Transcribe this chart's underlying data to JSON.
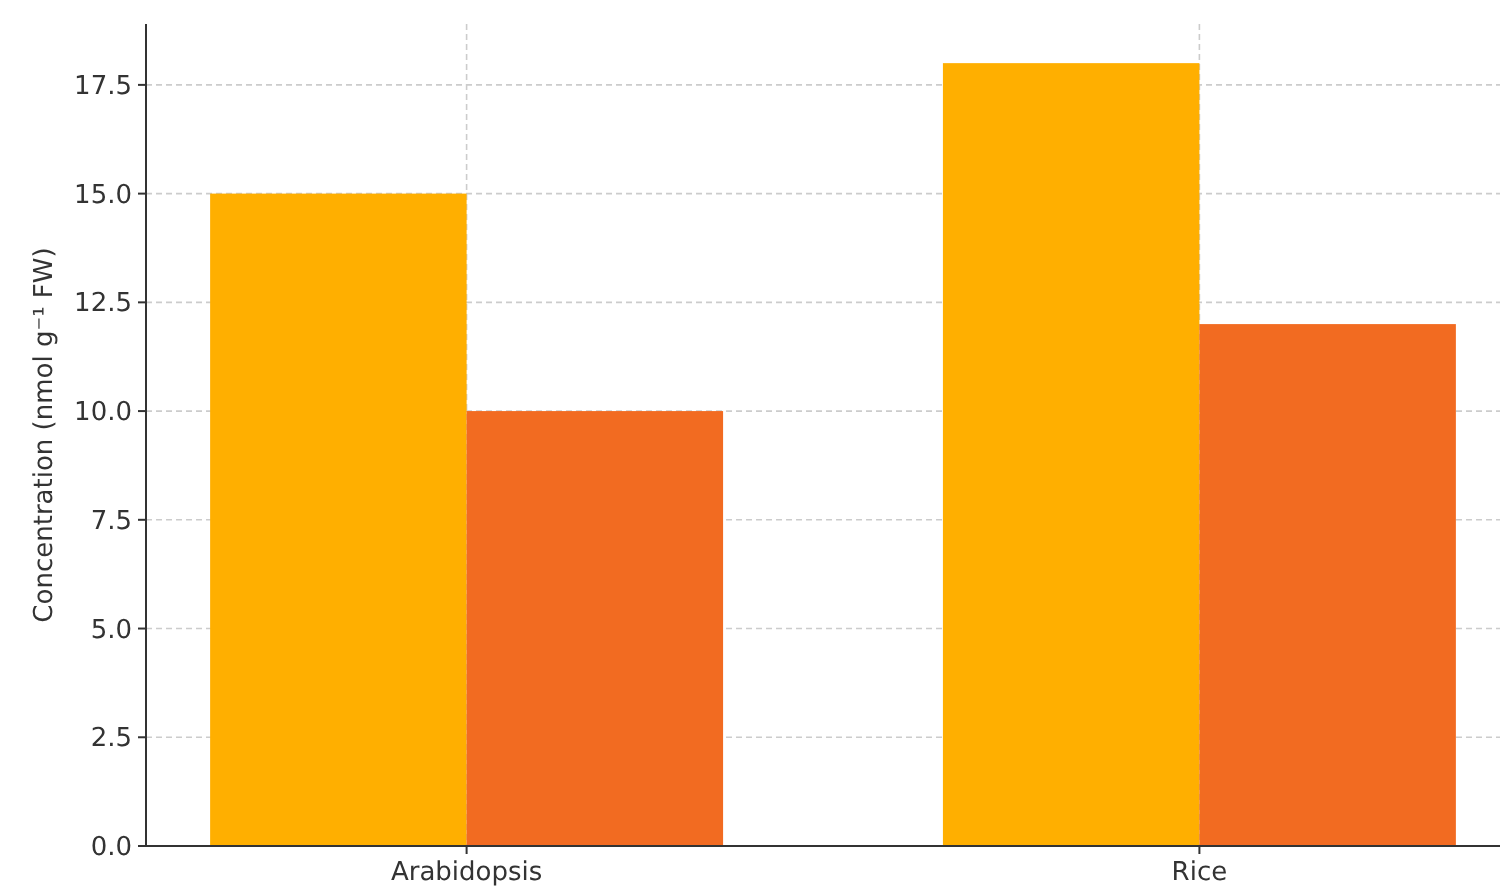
{
  "chart_data": {
    "type": "bar",
    "ylabel": "Concentration (nmol g⁻¹ FW)",
    "categories": [
      "Arabidopsis",
      "Rice"
    ],
    "series": [
      {
        "color": "#ffaf00",
        "values": [
          15,
          18
        ]
      },
      {
        "color": "#f26b21",
        "values": [
          10,
          12
        ]
      }
    ],
    "ylim": [
      0,
      18.9
    ],
    "yticks": [
      {
        "value": 0,
        "label": "0.0"
      },
      {
        "value": 2.5,
        "label": "2.5"
      },
      {
        "value": 5,
        "label": "5.0"
      },
      {
        "value": 7.5,
        "label": "7.5"
      },
      {
        "value": 10,
        "label": "10.0"
      },
      {
        "value": 12.5,
        "label": "12.5"
      },
      {
        "value": 15,
        "label": "15.0"
      },
      {
        "value": 17.5,
        "label": "17.5"
      }
    ],
    "grid": true
  }
}
